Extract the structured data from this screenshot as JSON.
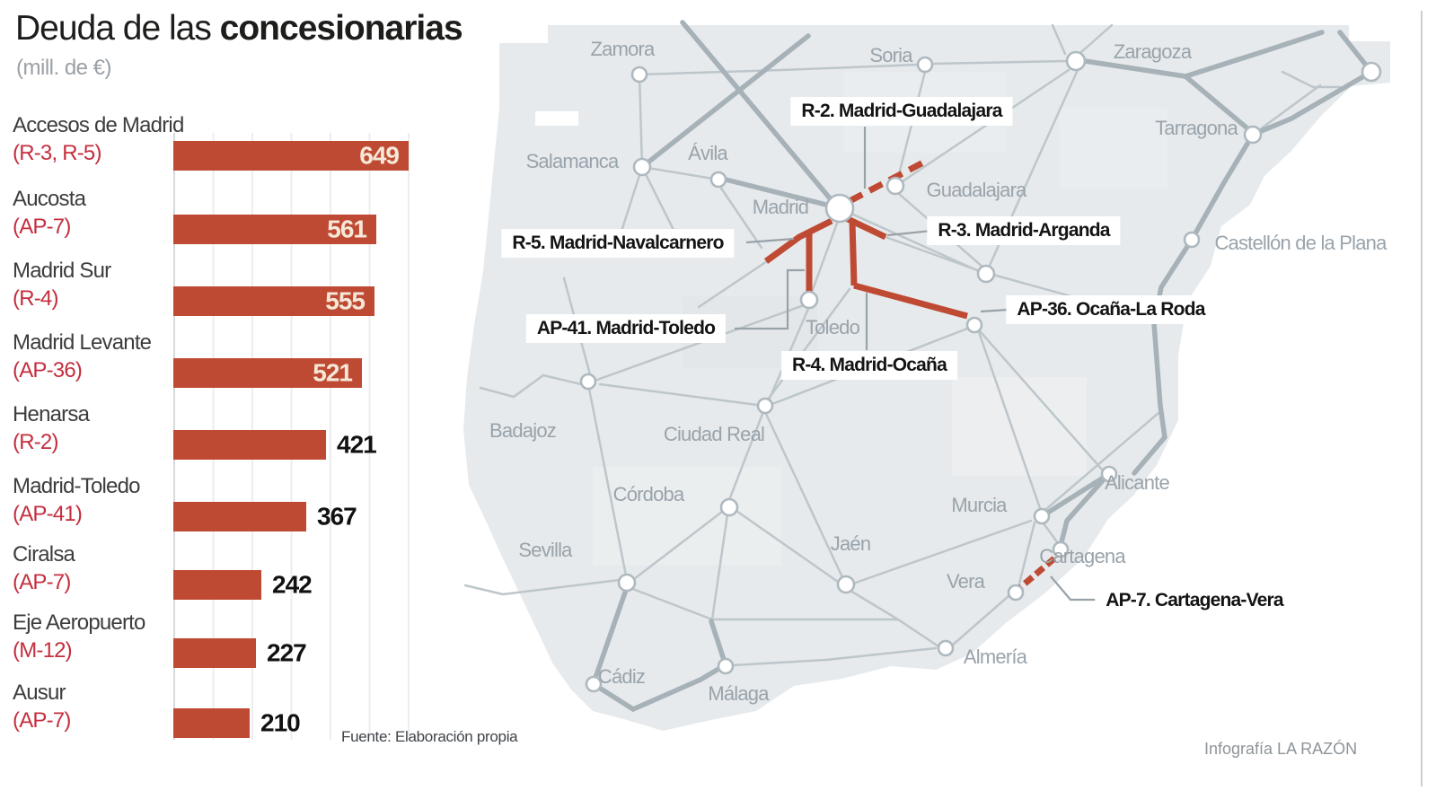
{
  "header": {
    "title_regular": "Deuda de las ",
    "title_bold": "concesionarias",
    "subtitle": "(mill. de €)"
  },
  "chart_data": {
    "type": "bar",
    "orientation": "horizontal",
    "title": "Deuda de las concesionarias",
    "unit": "mill. de €",
    "xlim": [
      0,
      700
    ],
    "grid": "faint vertical",
    "bar_color": "#bf4a33",
    "categories": [
      {
        "name": "Accesos de Madrid",
        "code": "(R-3, R-5)"
      },
      {
        "name": "Aucosta",
        "code": "(AP-7)"
      },
      {
        "name": "Madrid Sur",
        "code": "(R-4)"
      },
      {
        "name": "Madrid Levante",
        "code": "(AP-36)"
      },
      {
        "name": "Henarsa",
        "code": "(R-2)"
      },
      {
        "name": "Madrid-Toledo",
        "code": "(AP-41)"
      },
      {
        "name": "Ciralsa",
        "code": "(AP-7)"
      },
      {
        "name": "Eje Aeropuerto",
        "code": "(M-12)"
      },
      {
        "name": "Ausur",
        "code": "(AP-7)"
      }
    ],
    "values": [
      649,
      561,
      555,
      521,
      421,
      367,
      242,
      227,
      210
    ]
  },
  "map": {
    "toll_road_color": "#bf4a33",
    "cities": [
      {
        "name": "Zamora"
      },
      {
        "name": "Soria"
      },
      {
        "name": "Zaragoza"
      },
      {
        "name": "Tarragona"
      },
      {
        "name": "Salamanca"
      },
      {
        "name": "Ávila"
      },
      {
        "name": "Madrid"
      },
      {
        "name": "Guadalajara"
      },
      {
        "name": "Castellón de la Plana"
      },
      {
        "name": "Toledo"
      },
      {
        "name": "Badajoz"
      },
      {
        "name": "Ciudad Real"
      },
      {
        "name": "Córdoba"
      },
      {
        "name": "Sevilla"
      },
      {
        "name": "Jaén"
      },
      {
        "name": "Murcia"
      },
      {
        "name": "Alicante"
      },
      {
        "name": "Cartagena"
      },
      {
        "name": "Vera"
      },
      {
        "name": "Almería"
      },
      {
        "name": "Málaga"
      },
      {
        "name": "Cádiz"
      }
    ],
    "highways": [
      {
        "label": "R-2. Madrid-Guadalajara"
      },
      {
        "label": "R-5. Madrid-Navalcarnero"
      },
      {
        "label": "R-3. Madrid-Arganda"
      },
      {
        "label": "AP-41. Madrid-Toledo"
      },
      {
        "label": "AP-36. Ocaña-La Roda"
      },
      {
        "label": "R-4. Madrid-Ocaña"
      },
      {
        "label": "AP-7. Cartagena-Vera"
      }
    ]
  },
  "footer": {
    "source": "Fuente: Elaboración propia",
    "credit": "Infografía LA RAZÓN"
  }
}
